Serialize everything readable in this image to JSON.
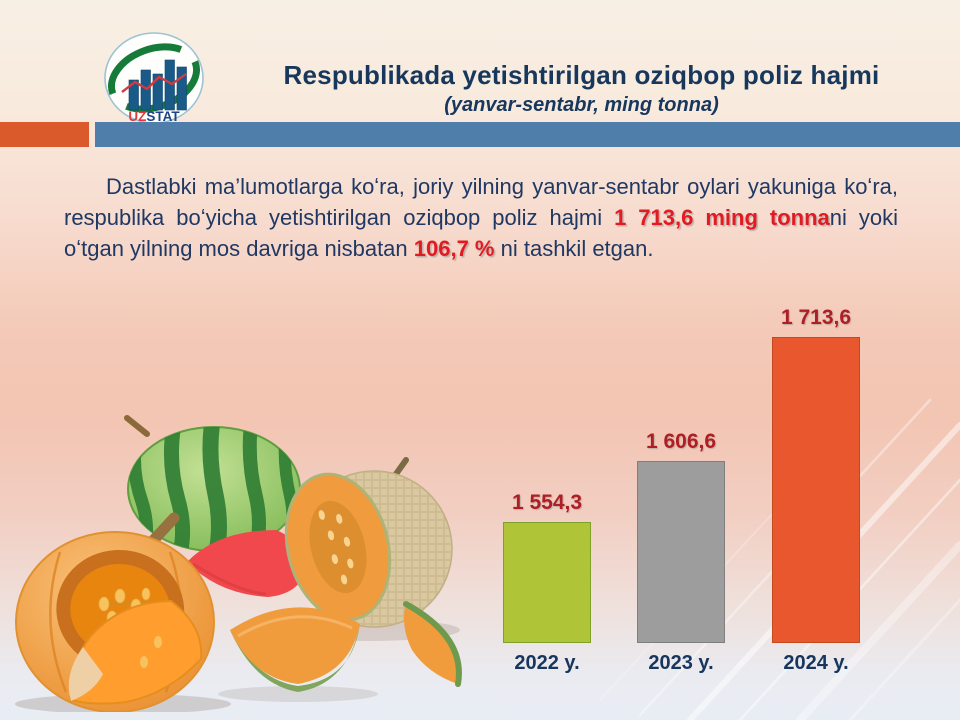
{
  "header": {
    "title": "Respublikada yetishtirilgan oziqbop poliz hajmi",
    "subtitle": "(yanvar-sentabr, ming tonna)"
  },
  "logo": {
    "uz": "UZ",
    "stat": "STAT"
  },
  "paragraph": {
    "part1": "Dastlabki ma’lumotlarga koʻra, joriy yilning yanvar-sentabr oylari yakuniga koʻra, respublika boʻyicha yetishtirilgan oziqbop poliz hajmi ",
    "highlight1": "1 713,6 ming tonna",
    "part2": "ni yoki oʻtgan yilning mos davriga nisbatan ",
    "highlight2": "106,7 %",
    "part3": " ni  tashkil etgan."
  },
  "chart_data": {
    "type": "bar",
    "title": "Respublikada yetishtirilgan oziqbop poliz hajmi",
    "subtitle": "(yanvar-sentabr, ming tonna)",
    "unit": "ming tonna",
    "categories": [
      "2022 y.",
      "2023 y.",
      "2024 y."
    ],
    "values": [
      1554.3,
      1606.6,
      1713.6
    ],
    "value_labels": [
      "1 554,3",
      "1 606,6",
      "1 713,6"
    ],
    "colors": [
      "#AFC437",
      "#9D9D9D",
      "#E8572E"
    ],
    "border_colors": [
      "#7FA02B",
      "#7F7F7F",
      "#C14A1F"
    ],
    "ylim": [
      1450,
      1750
    ],
    "grid": false,
    "legend": false
  },
  "colors": {
    "band_orange": "#DB5A2C",
    "band_blue": "#4E7EA9",
    "title_navy": "#17375D",
    "text_navy": "#1F3864",
    "highlight_red": "#E21B23",
    "value_label_red": "#AD1F24"
  }
}
